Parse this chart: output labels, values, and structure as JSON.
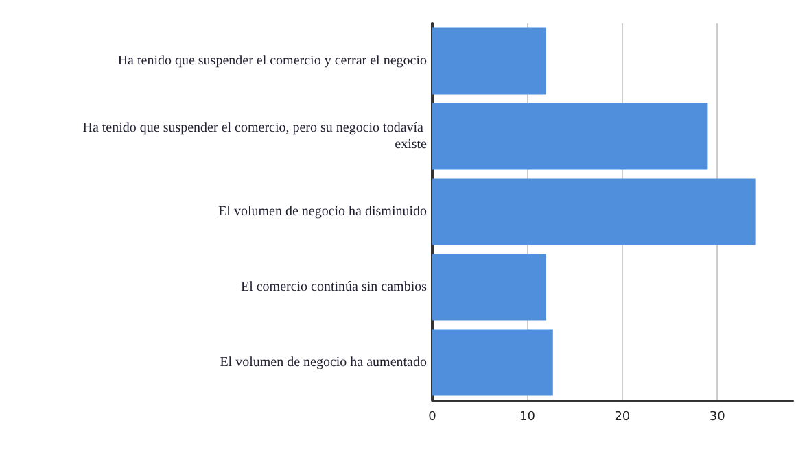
{
  "chart_data": {
    "type": "bar",
    "orientation": "horizontal",
    "categories": [
      "Ha tenido que suspender el comercio y cerrar el negocio",
      "Ha tenido que suspender el comercio, pero su negocio todavía existe",
      "El volumen de negocio ha disminuido",
      "El comercio continúa sin cambios",
      "El volumen de negocio ha aumentado"
    ],
    "values": [
      12,
      29,
      34,
      12,
      12.7
    ],
    "color": "#4f8fdb",
    "xlim": [
      0,
      38
    ],
    "xticks": [
      0,
      10,
      20,
      30
    ],
    "grid": "x"
  }
}
